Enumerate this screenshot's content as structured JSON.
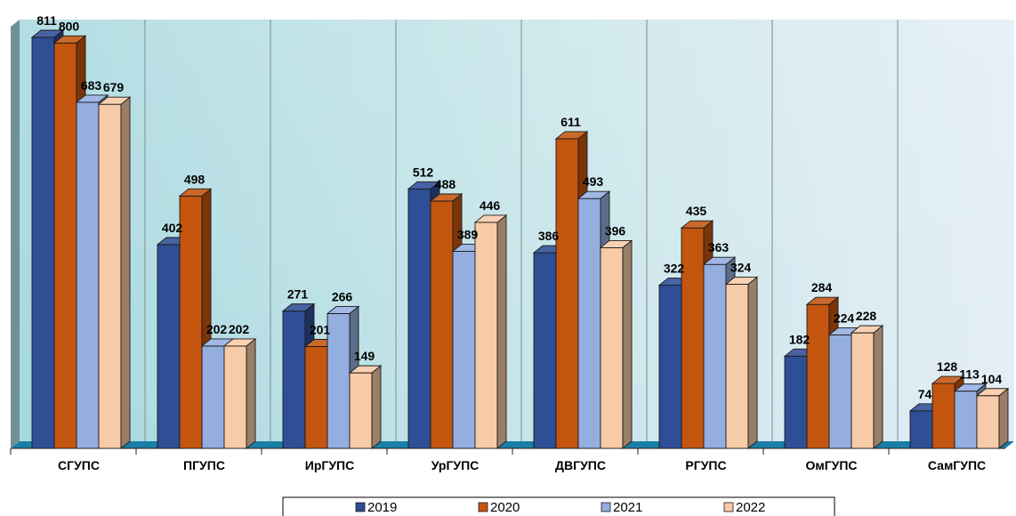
{
  "chart_data": {
    "type": "bar",
    "categories": [
      "СГУПС",
      "ПГУПС",
      "ИрГУПС",
      "УрГУПС",
      "ДВГУПС",
      "РГУПС",
      "ОмГУПС",
      "СамГУПС"
    ],
    "series": [
      {
        "name": "2019",
        "color": "#2E4E96",
        "values": [
          811,
          402,
          271,
          512,
          386,
          322,
          182,
          74
        ]
      },
      {
        "name": "2020",
        "color": "#C4550E",
        "values": [
          800,
          498,
          201,
          488,
          611,
          435,
          284,
          128
        ]
      },
      {
        "name": "2021",
        "color": "#94AEE0",
        "values": [
          683,
          202,
          266,
          389,
          493,
          363,
          224,
          113
        ]
      },
      {
        "name": "2022",
        "color": "#F8CBA8",
        "values": [
          679,
          202,
          149,
          446,
          396,
          324,
          228,
          104
        ]
      }
    ],
    "ylim": [
      0,
      811
    ],
    "grid": true,
    "legend_position": "bottom",
    "floor_color": "#1A7FA6"
  }
}
